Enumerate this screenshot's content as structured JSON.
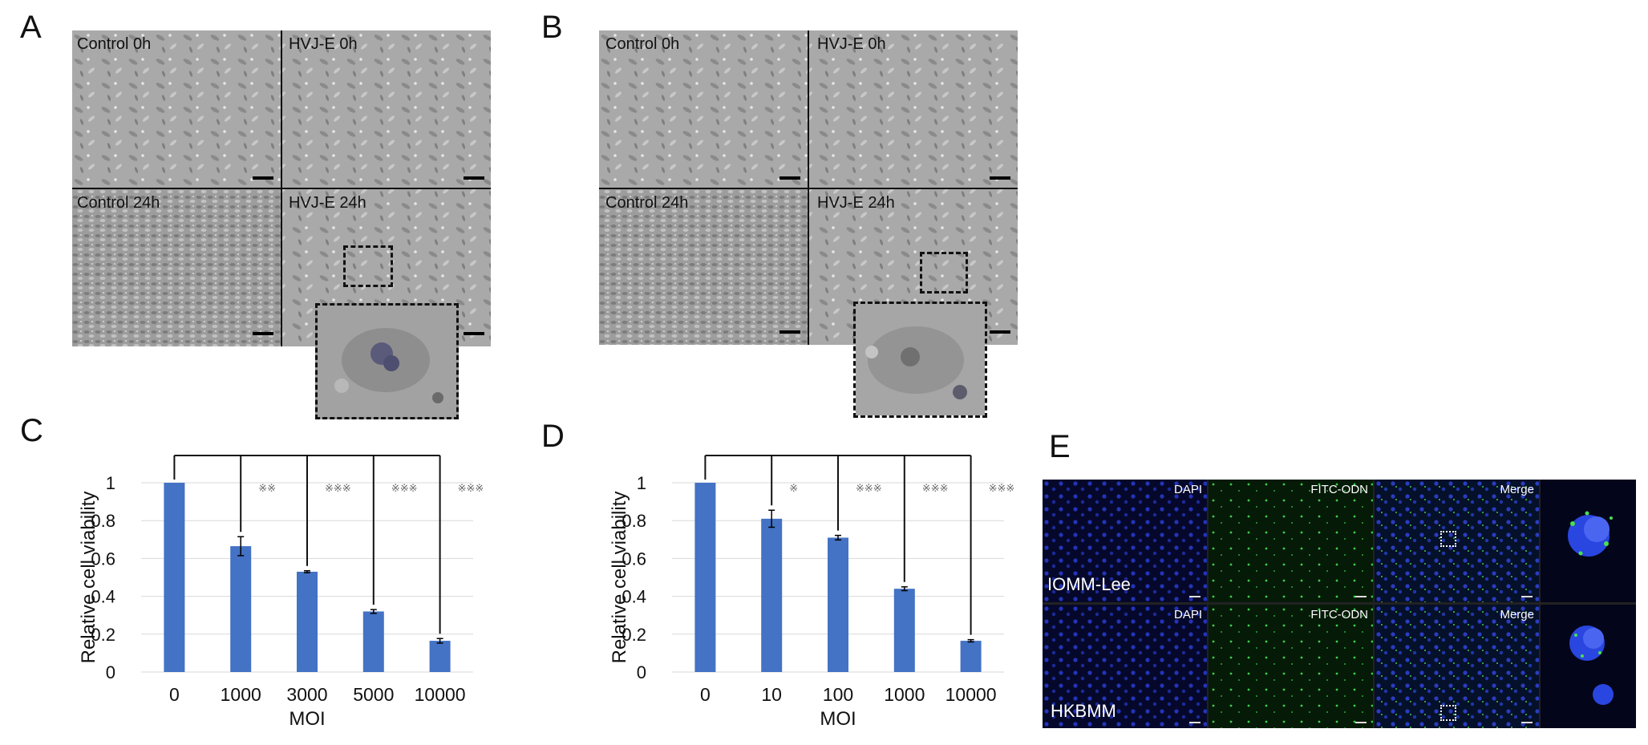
{
  "panels": {
    "A": {
      "letter": "A",
      "labels": [
        "Control 0h",
        "HVJ-E 0h",
        "Control 24h",
        "HVJ-E 24h"
      ]
    },
    "B": {
      "letter": "B",
      "labels": [
        "Control 0h",
        "HVJ-E 0h",
        "Control 24h",
        "HVJ-E 24h"
      ]
    },
    "E": {
      "letter": "E",
      "rows": [
        {
          "cell_line": "IOMM-Lee",
          "channels": [
            "DAPI",
            "FITC-ODN",
            "Merge"
          ]
        },
        {
          "cell_line": "HKBMM",
          "channels": [
            "DAPI",
            "FITC-ODN",
            "Merge"
          ]
        }
      ],
      "colors": {
        "dapi": "#1a2aa8",
        "fitc": "#38c040"
      }
    }
  },
  "chart_data": [
    {
      "panel": "C",
      "type": "bar",
      "categories": [
        "0",
        "1000",
        "3000",
        "5000",
        "10000"
      ],
      "values": [
        1.0,
        0.665,
        0.53,
        0.32,
        0.165
      ],
      "errors": [
        0.0,
        0.05,
        0.005,
        0.01,
        0.012
      ],
      "significance": [
        "",
        "※※",
        "※※※",
        "※※※",
        "※※※"
      ],
      "xlabel": "MOI",
      "ylabel": "Relative cell viability",
      "ylim": [
        0,
        1
      ],
      "yticks": [
        "0",
        "0.2",
        "0.4",
        "0.6",
        "0.8",
        "1"
      ],
      "bar_color": "#4472c4",
      "grid": true
    },
    {
      "panel": "D",
      "type": "bar",
      "categories": [
        "0",
        "10",
        "100",
        "1000",
        "10000"
      ],
      "values": [
        1.0,
        0.81,
        0.71,
        0.44,
        0.165
      ],
      "errors": [
        0.0,
        0.045,
        0.012,
        0.01,
        0.006
      ],
      "significance": [
        "",
        "※",
        "※※※",
        "※※※",
        "※※※"
      ],
      "xlabel": "MOI",
      "ylabel": "Relative cell viability",
      "ylim": [
        0,
        1
      ],
      "yticks": [
        "0",
        "0.2",
        "0.4",
        "0.6",
        "0.8",
        "1"
      ],
      "bar_color": "#4472c4",
      "grid": true
    }
  ],
  "chart_letters": [
    "C",
    "D"
  ]
}
